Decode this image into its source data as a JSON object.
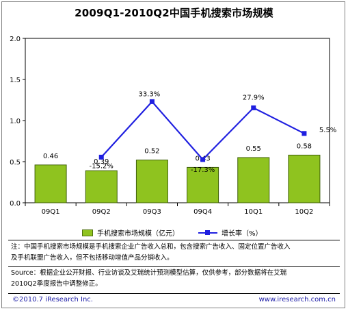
{
  "title": "2009Q1-2010Q2中国手机搜索市场规模",
  "chart_data": {
    "type": "bar",
    "categories": [
      "09Q1",
      "09Q2",
      "09Q3",
      "09Q4",
      "10Q1",
      "10Q2"
    ],
    "series": [
      {
        "name": "手机搜索市场规模（亿元）",
        "type": "bar",
        "axis": "left",
        "values": [
          0.46,
          0.39,
          0.52,
          0.43,
          0.55,
          0.58
        ],
        "labels": [
          "0.46",
          "0.39",
          "0.52",
          "0.43",
          "0.55",
          "0.58"
        ],
        "color": "#8fc31f"
      },
      {
        "name": "增长率（%）",
        "type": "line",
        "axis": "secondary",
        "values": [
          null,
          -15.2,
          33.3,
          -17.3,
          27.9,
          5.5
        ],
        "labels": [
          "",
          "-15.2%",
          "33.3%",
          "-17.3%",
          "27.9%",
          "5.5%"
        ],
        "color": "#1f1fe0"
      }
    ],
    "ylim": [
      0,
      2.0
    ],
    "yticks": [
      "0.0",
      "0.5",
      "1.0",
      "1.5",
      "2.0"
    ],
    "grid": false,
    "legend_position": "bottom"
  },
  "legend": {
    "bar_label": "手机搜索市场规模（亿元）",
    "line_label": "增长率（%）"
  },
  "notes": {
    "note_line1": "注：中国手机搜索市场规模是手机搜索企业广告收入总和，包含搜索广告收入、固定位置广告收入",
    "note_line2": "及手机联盟广告收入，但不包括移动增值产品分销收入。",
    "source_line1": "Source：根据企业公开财报、行业访谈及艾瑞统计预测模型估算，仅供参考，部分数据将在艾瑞",
    "source_line2": "2010Q2季度报告中调整修正。"
  },
  "footer": {
    "copyright": "©2010.7 iResearch Inc.",
    "website": "www.iresearch.com.cn"
  }
}
